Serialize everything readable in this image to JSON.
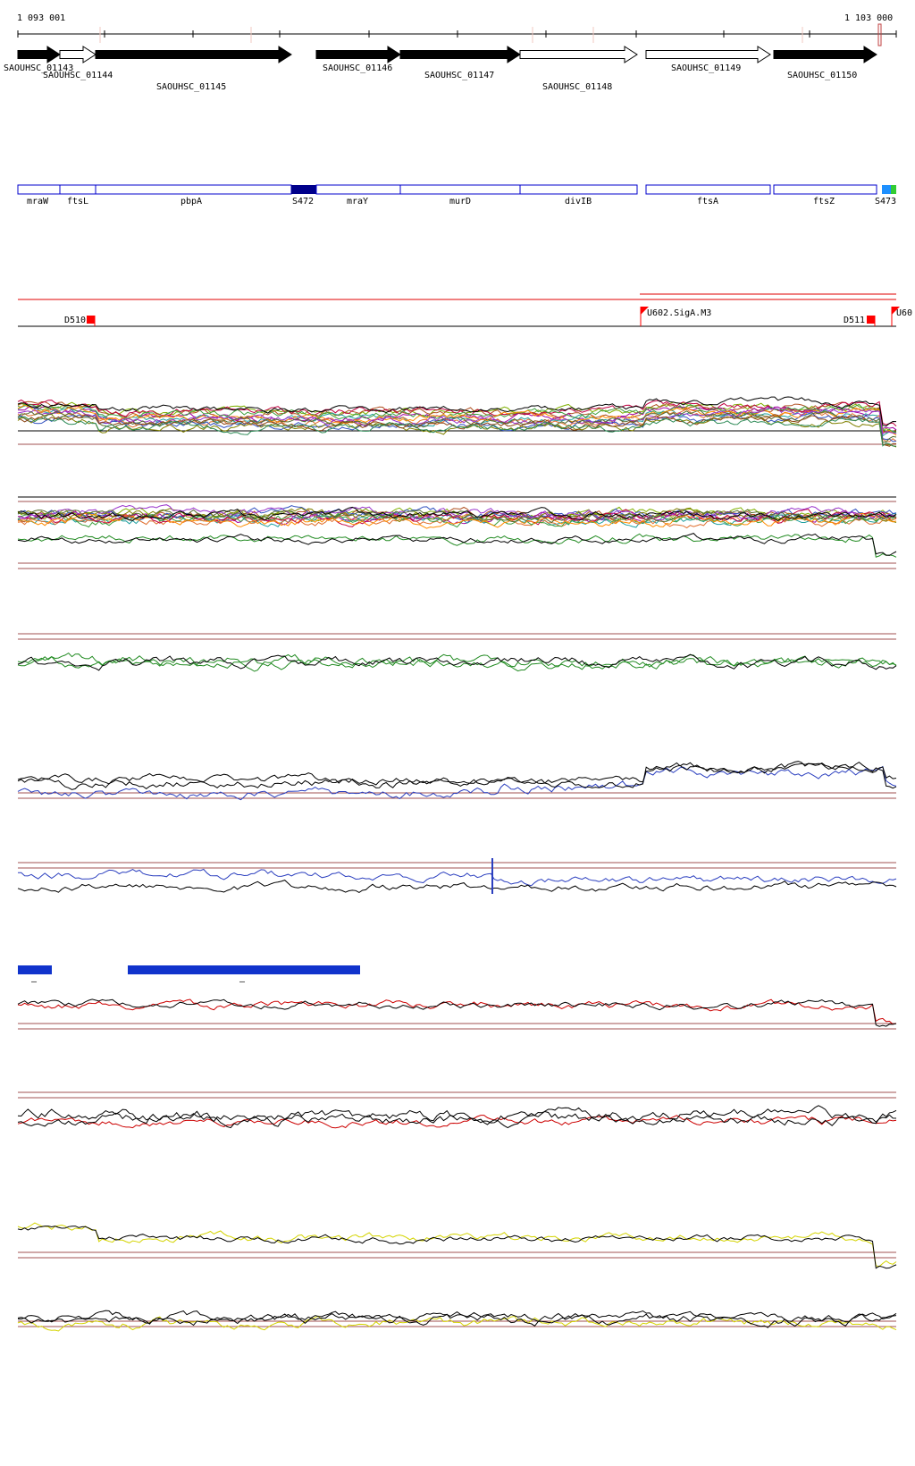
{
  "ruler": {
    "start_label": "1 093 001",
    "end_label": "1 103 000"
  },
  "genes_top": [
    {
      "id": "SAOUHSC_01143",
      "filled": true
    },
    {
      "id": "SAOUHSC_01144",
      "filled": false
    },
    {
      "id": "SAOUHSC_01145",
      "filled": true
    },
    {
      "id": "SAOUHSC_01146",
      "filled": true
    },
    {
      "id": "SAOUHSC_01147",
      "filled": true
    },
    {
      "id": "SAOUHSC_01148",
      "filled": false
    },
    {
      "id": "SAOUHSC_01149",
      "filled": false
    },
    {
      "id": "SAOUHSC_01150",
      "filled": true
    }
  ],
  "gene_boxes": [
    {
      "name": "mraW",
      "kind": "gene"
    },
    {
      "name": "ftsL",
      "kind": "gene"
    },
    {
      "name": "pbpA",
      "kind": "gene"
    },
    {
      "name": "S472",
      "kind": "segment"
    },
    {
      "name": "mraY",
      "kind": "gene"
    },
    {
      "name": "murD",
      "kind": "gene"
    },
    {
      "name": "divIB",
      "kind": "gene"
    },
    {
      "name": "ftsA",
      "kind": "gene"
    },
    {
      "name": "ftsZ",
      "kind": "gene"
    },
    {
      "name": "S473",
      "kind": "segment"
    }
  ],
  "promoters": [
    {
      "label": "D510"
    },
    {
      "label": "U602.SigA.M3"
    },
    {
      "label": "D511"
    },
    {
      "label": "U60"
    }
  ],
  "blocks": [
    {
      "label": "–"
    },
    {
      "label": "–"
    }
  ],
  "colors": {
    "gene_filled": "#000000",
    "gene_box": "#0000cc",
    "segment_dark": "#00008b",
    "segment_light": "#1e90ff",
    "segment_green": "#33cc33",
    "promoter": "#ff0000",
    "guide": "#a05050",
    "track_green": "#228b22",
    "track_blue": "#2b3fbf",
    "track_red": "#cc0000",
    "track_yellow": "#d4d400",
    "block": "#1033cc"
  },
  "icons": {
    "promoter": "flag-icon"
  }
}
